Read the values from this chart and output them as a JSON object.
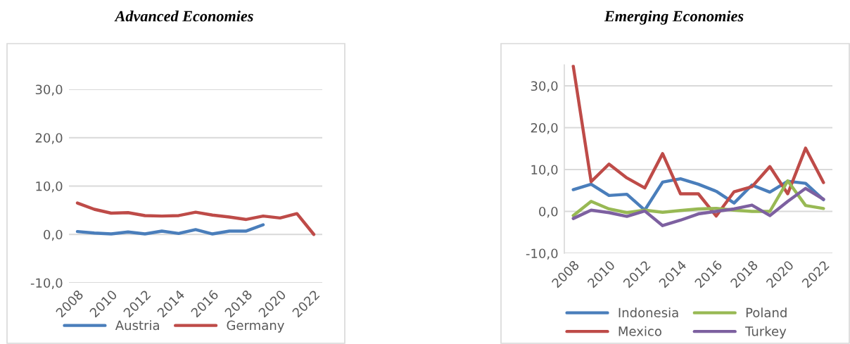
{
  "chart_data": [
    {
      "type": "line",
      "title": "Advanced Economies",
      "categories": [
        "2008",
        null,
        "2010",
        null,
        "2012",
        null,
        "2014",
        null,
        "2016",
        null,
        "2018",
        null,
        "2020",
        null,
        "2022"
      ],
      "series": [
        {
          "name": "Austria",
          "color": "#4a7ebb",
          "values": [
            0.6,
            0.3,
            0.1,
            0.5,
            0.1,
            0.7,
            0.2,
            1.0,
            0.1,
            0.7,
            0.7,
            2.0,
            null,
            null,
            null
          ]
        },
        {
          "name": "Germany",
          "color": "#be4b48",
          "values": [
            6.5,
            5.2,
            4.4,
            4.5,
            3.9,
            3.8,
            3.9,
            4.6,
            4.0,
            3.6,
            3.1,
            3.8,
            3.4,
            4.3,
            0.0
          ]
        }
      ],
      "ylim": [
        -10,
        30
      ],
      "yticks": [
        {
          "value": -10,
          "label": "-10,0"
        },
        {
          "value": 0,
          "label": "0,0"
        },
        {
          "value": 10,
          "label": "10,0"
        },
        {
          "value": 20,
          "label": "20,0"
        },
        {
          "value": 30,
          "label": "30,0"
        }
      ],
      "grid": "y",
      "legend": "bottom",
      "marker": "none",
      "line_style": "solid"
    },
    {
      "type": "line",
      "title": "Emerging Economies",
      "categories": [
        "2008",
        null,
        "2010",
        null,
        "2012",
        null,
        "2014",
        null,
        "2016",
        null,
        "2018",
        null,
        "2020",
        null,
        "2022"
      ],
      "series": [
        {
          "name": "Indonesia",
          "color": "#4a7ebb",
          "values": [
            5.2,
            6.5,
            3.8,
            4.1,
            0.3,
            7.0,
            7.8,
            6.5,
            4.8,
            2.0,
            6.3,
            4.6,
            7.2,
            6.7,
            2.8
          ]
        },
        {
          "name": "Mexico",
          "color": "#be4b48",
          "values": [
            34.7,
            7.1,
            11.3,
            8.0,
            5.6,
            13.8,
            4.2,
            4.2,
            -1.1,
            4.7,
            5.9,
            10.7,
            4.2,
            15.1,
            6.9
          ]
        },
        {
          "name": "Poland",
          "color": "#98b954",
          "values": [
            -1.0,
            2.4,
            0.6,
            -0.3,
            0.3,
            -0.2,
            0.2,
            0.6,
            0.7,
            0.3,
            0.0,
            0.0,
            7.3,
            1.4,
            0.7
          ]
        },
        {
          "name": "Turkey",
          "color": "#7d60a0",
          "values": [
            -1.7,
            0.3,
            -0.3,
            -1.2,
            0.1,
            -3.4,
            -2.1,
            -0.6,
            0.0,
            0.6,
            1.5,
            -1.0,
            2.4,
            5.5,
            2.9
          ]
        }
      ],
      "ylim": [
        -10,
        35
      ],
      "yticks": [
        {
          "value": -10,
          "label": "-10,0"
        },
        {
          "value": 0,
          "label": "0,0"
        },
        {
          "value": 10,
          "label": "10,0"
        },
        {
          "value": 20,
          "label": "20,0"
        },
        {
          "value": 30,
          "label": "30,0"
        }
      ],
      "grid": "y",
      "legend": "bottom",
      "marker": "none",
      "line_style": "solid"
    }
  ]
}
